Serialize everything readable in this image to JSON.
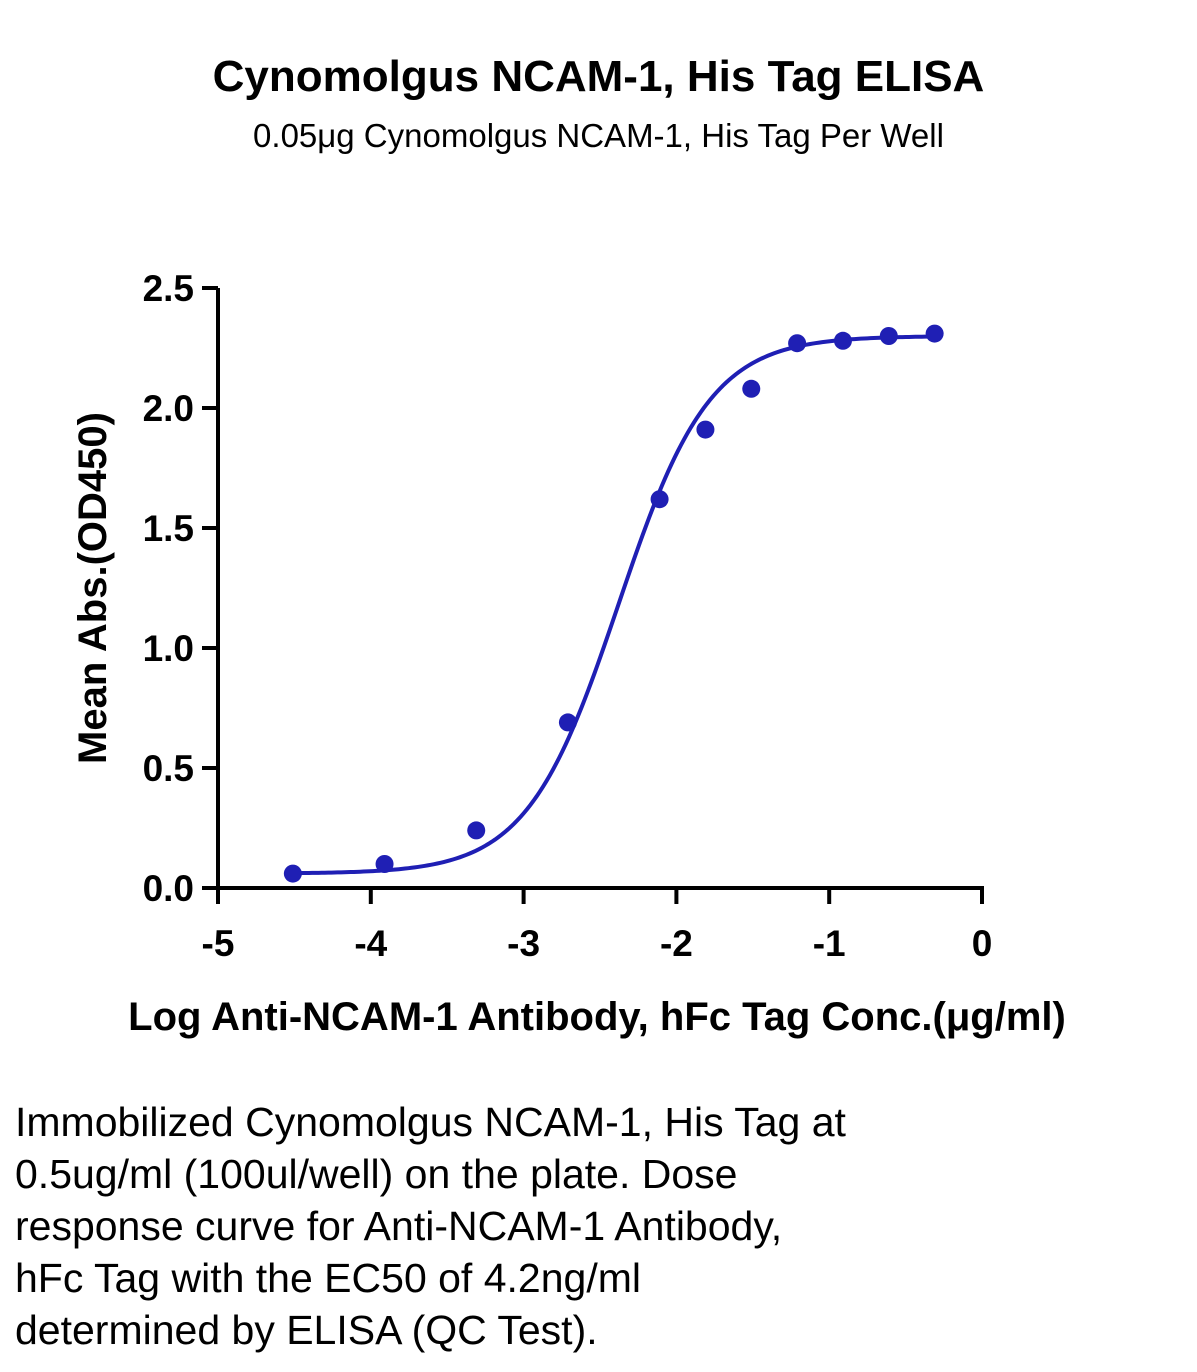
{
  "chart_data": {
    "type": "scatter",
    "title": "Cynomolgus NCAM-1, His Tag ELISA",
    "subtitle": "0.05μg Cynomolgus NCAM-1, His Tag Per Well",
    "xlabel": "Log Anti-NCAM-1 Antibody, hFc Tag Conc.(μg/ml)",
    "ylabel": "Mean Abs.(OD450)",
    "xlim": [
      -5,
      0
    ],
    "ylim": [
      0,
      2.5
    ],
    "xticks": [
      "-5",
      "-4",
      "-3",
      "-2",
      "-1",
      "0"
    ],
    "yticks": [
      "0.0",
      "0.5",
      "1.0",
      "1.5",
      "2.0",
      "2.5"
    ],
    "series": [
      {
        "points": [
          {
            "x": -4.51,
            "y": 0.06
          },
          {
            "x": -3.91,
            "y": 0.1
          },
          {
            "x": -3.31,
            "y": 0.24
          },
          {
            "x": -2.71,
            "y": 0.69
          },
          {
            "x": -2.11,
            "y": 1.62
          },
          {
            "x": -1.81,
            "y": 1.91
          },
          {
            "x": -1.51,
            "y": 2.08
          },
          {
            "x": -1.21,
            "y": 2.27
          },
          {
            "x": -0.91,
            "y": 2.28
          },
          {
            "x": -0.61,
            "y": 2.3
          },
          {
            "x": -0.31,
            "y": 2.31
          }
        ],
        "fit": {
          "bottom": 0.06,
          "top": 2.3,
          "logEC50": -2.38,
          "hill": 1.45
        }
      }
    ],
    "color": "#1f1fb4",
    "grid": false,
    "legend": "none"
  },
  "caption": {
    "lines": [
      "Immobilized Cynomolgus NCAM-1, His Tag at",
      "0.5ug/ml (100ul/well) on the plate. Dose",
      "response curve for Anti-NCAM-1 Antibody,",
      "hFc Tag with the EC50 of 4.2ng/ml",
      "determined by ELISA (QC Test)."
    ]
  }
}
